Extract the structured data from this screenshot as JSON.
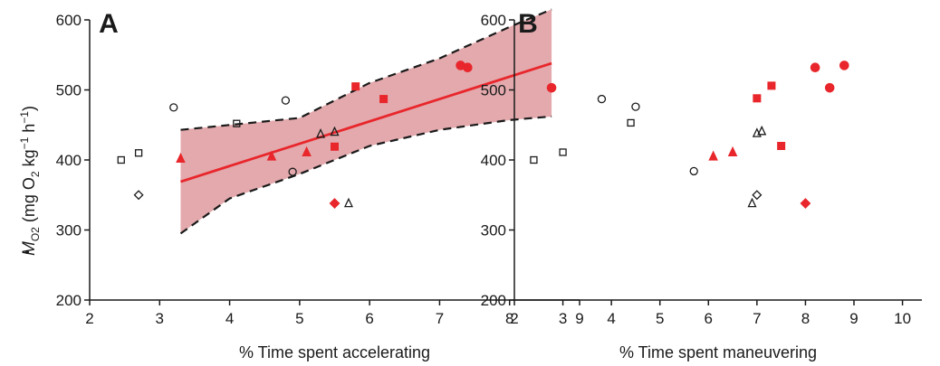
{
  "figure": {
    "y_axis_title": "(mg O",
    "y_axis_title_sub": "2",
    "y_axis_title_end": " kg",
    "y_axis_title_sup1": "−1",
    "y_axis_title_h": " h",
    "y_axis_title_sup2": "−1",
    "y_axis_title_close": ")",
    "y_symbol": "M",
    "y_symbol_sub": "O2"
  },
  "colors": {
    "red": "#e8262b",
    "band": "#e3a9ad",
    "black": "#1a1a1a"
  },
  "chart_data": [
    {
      "panel": "A",
      "type": "scatter",
      "xlabel": "% Time spent accelerating",
      "ylabel": "ṀO2 (mg O2 kg−1 h−1)",
      "xlim": [
        2,
        9
      ],
      "ylim": [
        200,
        600
      ],
      "xticks": [
        2,
        3,
        4,
        5,
        6,
        7,
        8,
        9
      ],
      "yticks": [
        200,
        300,
        400,
        500,
        600
      ],
      "regression": {
        "line": [
          [
            3.3,
            369
          ],
          [
            8.6,
            538
          ]
        ],
        "ci_upper": [
          [
            3.3,
            443
          ],
          [
            4,
            450
          ],
          [
            5,
            460
          ],
          [
            6,
            510
          ],
          [
            7,
            545
          ],
          [
            8,
            590
          ],
          [
            8.6,
            615
          ]
        ],
        "ci_lower": [
          [
            3.3,
            295
          ],
          [
            4,
            345
          ],
          [
            5,
            380
          ],
          [
            6,
            420
          ],
          [
            7,
            443
          ],
          [
            8,
            457
          ],
          [
            8.6,
            462
          ]
        ]
      },
      "series": [
        {
          "marker": "square-open",
          "color": "black",
          "points": [
            [
              2.45,
              400
            ],
            [
              2.7,
              410
            ],
            [
              4.1,
              452
            ]
          ]
        },
        {
          "marker": "circle-open",
          "color": "black",
          "points": [
            [
              3.2,
              475
            ],
            [
              4.8,
              485
            ],
            [
              4.9,
              383
            ]
          ]
        },
        {
          "marker": "diamond-open",
          "color": "black",
          "points": [
            [
              2.7,
              350
            ]
          ]
        },
        {
          "marker": "triangle-open",
          "color": "black",
          "points": [
            [
              5.3,
              437
            ],
            [
              5.5,
              440
            ],
            [
              5.7,
              338
            ]
          ]
        },
        {
          "marker": "square-filled",
          "color": "red",
          "points": [
            [
              5.8,
              505
            ],
            [
              6.2,
              487
            ],
            [
              5.5,
              419
            ]
          ]
        },
        {
          "marker": "triangle-filled",
          "color": "red",
          "points": [
            [
              3.3,
              402
            ],
            [
              4.6,
              405
            ],
            [
              5.1,
              411
            ]
          ]
        },
        {
          "marker": "circle-filled",
          "color": "red",
          "points": [
            [
              7.3,
              535
            ],
            [
              7.4,
              532
            ],
            [
              8.6,
              503
            ]
          ]
        },
        {
          "marker": "diamond-filled",
          "color": "red",
          "points": [
            [
              5.5,
              338
            ]
          ]
        }
      ]
    },
    {
      "panel": "B",
      "type": "scatter",
      "xlabel": "% Time spent maneuvering",
      "ylabel": "",
      "xlim": [
        2,
        10.4
      ],
      "ylim": [
        200,
        600
      ],
      "xticks": [
        2,
        3,
        4,
        5,
        6,
        7,
        8,
        9,
        10
      ],
      "yticks": [
        200,
        300,
        400,
        500,
        600
      ],
      "series": [
        {
          "marker": "square-open",
          "color": "black",
          "points": [
            [
              2.4,
              400
            ],
            [
              3.0,
              411
            ],
            [
              4.4,
              453
            ]
          ]
        },
        {
          "marker": "circle-open",
          "color": "black",
          "points": [
            [
              3.8,
              487
            ],
            [
              4.5,
              476
            ],
            [
              5.7,
              384
            ]
          ]
        },
        {
          "marker": "diamond-open",
          "color": "black",
          "points": [
            [
              7.0,
              350
            ]
          ]
        },
        {
          "marker": "triangle-open",
          "color": "black",
          "points": [
            [
              7.0,
              438
            ],
            [
              7.1,
              441
            ],
            [
              6.9,
              338
            ]
          ]
        },
        {
          "marker": "square-filled",
          "color": "red",
          "points": [
            [
              7.3,
              506
            ],
            [
              7.0,
              488
            ],
            [
              7.5,
              420
            ]
          ]
        },
        {
          "marker": "triangle-filled",
          "color": "red",
          "points": [
            [
              6.1,
              405
            ],
            [
              6.5,
              411
            ]
          ]
        },
        {
          "marker": "circle-filled",
          "color": "red",
          "points": [
            [
              8.2,
              532
            ],
            [
              8.8,
              535
            ],
            [
              8.5,
              503
            ]
          ]
        },
        {
          "marker": "diamond-filled",
          "color": "red",
          "points": [
            [
              8.0,
              338
            ]
          ]
        }
      ]
    }
  ]
}
